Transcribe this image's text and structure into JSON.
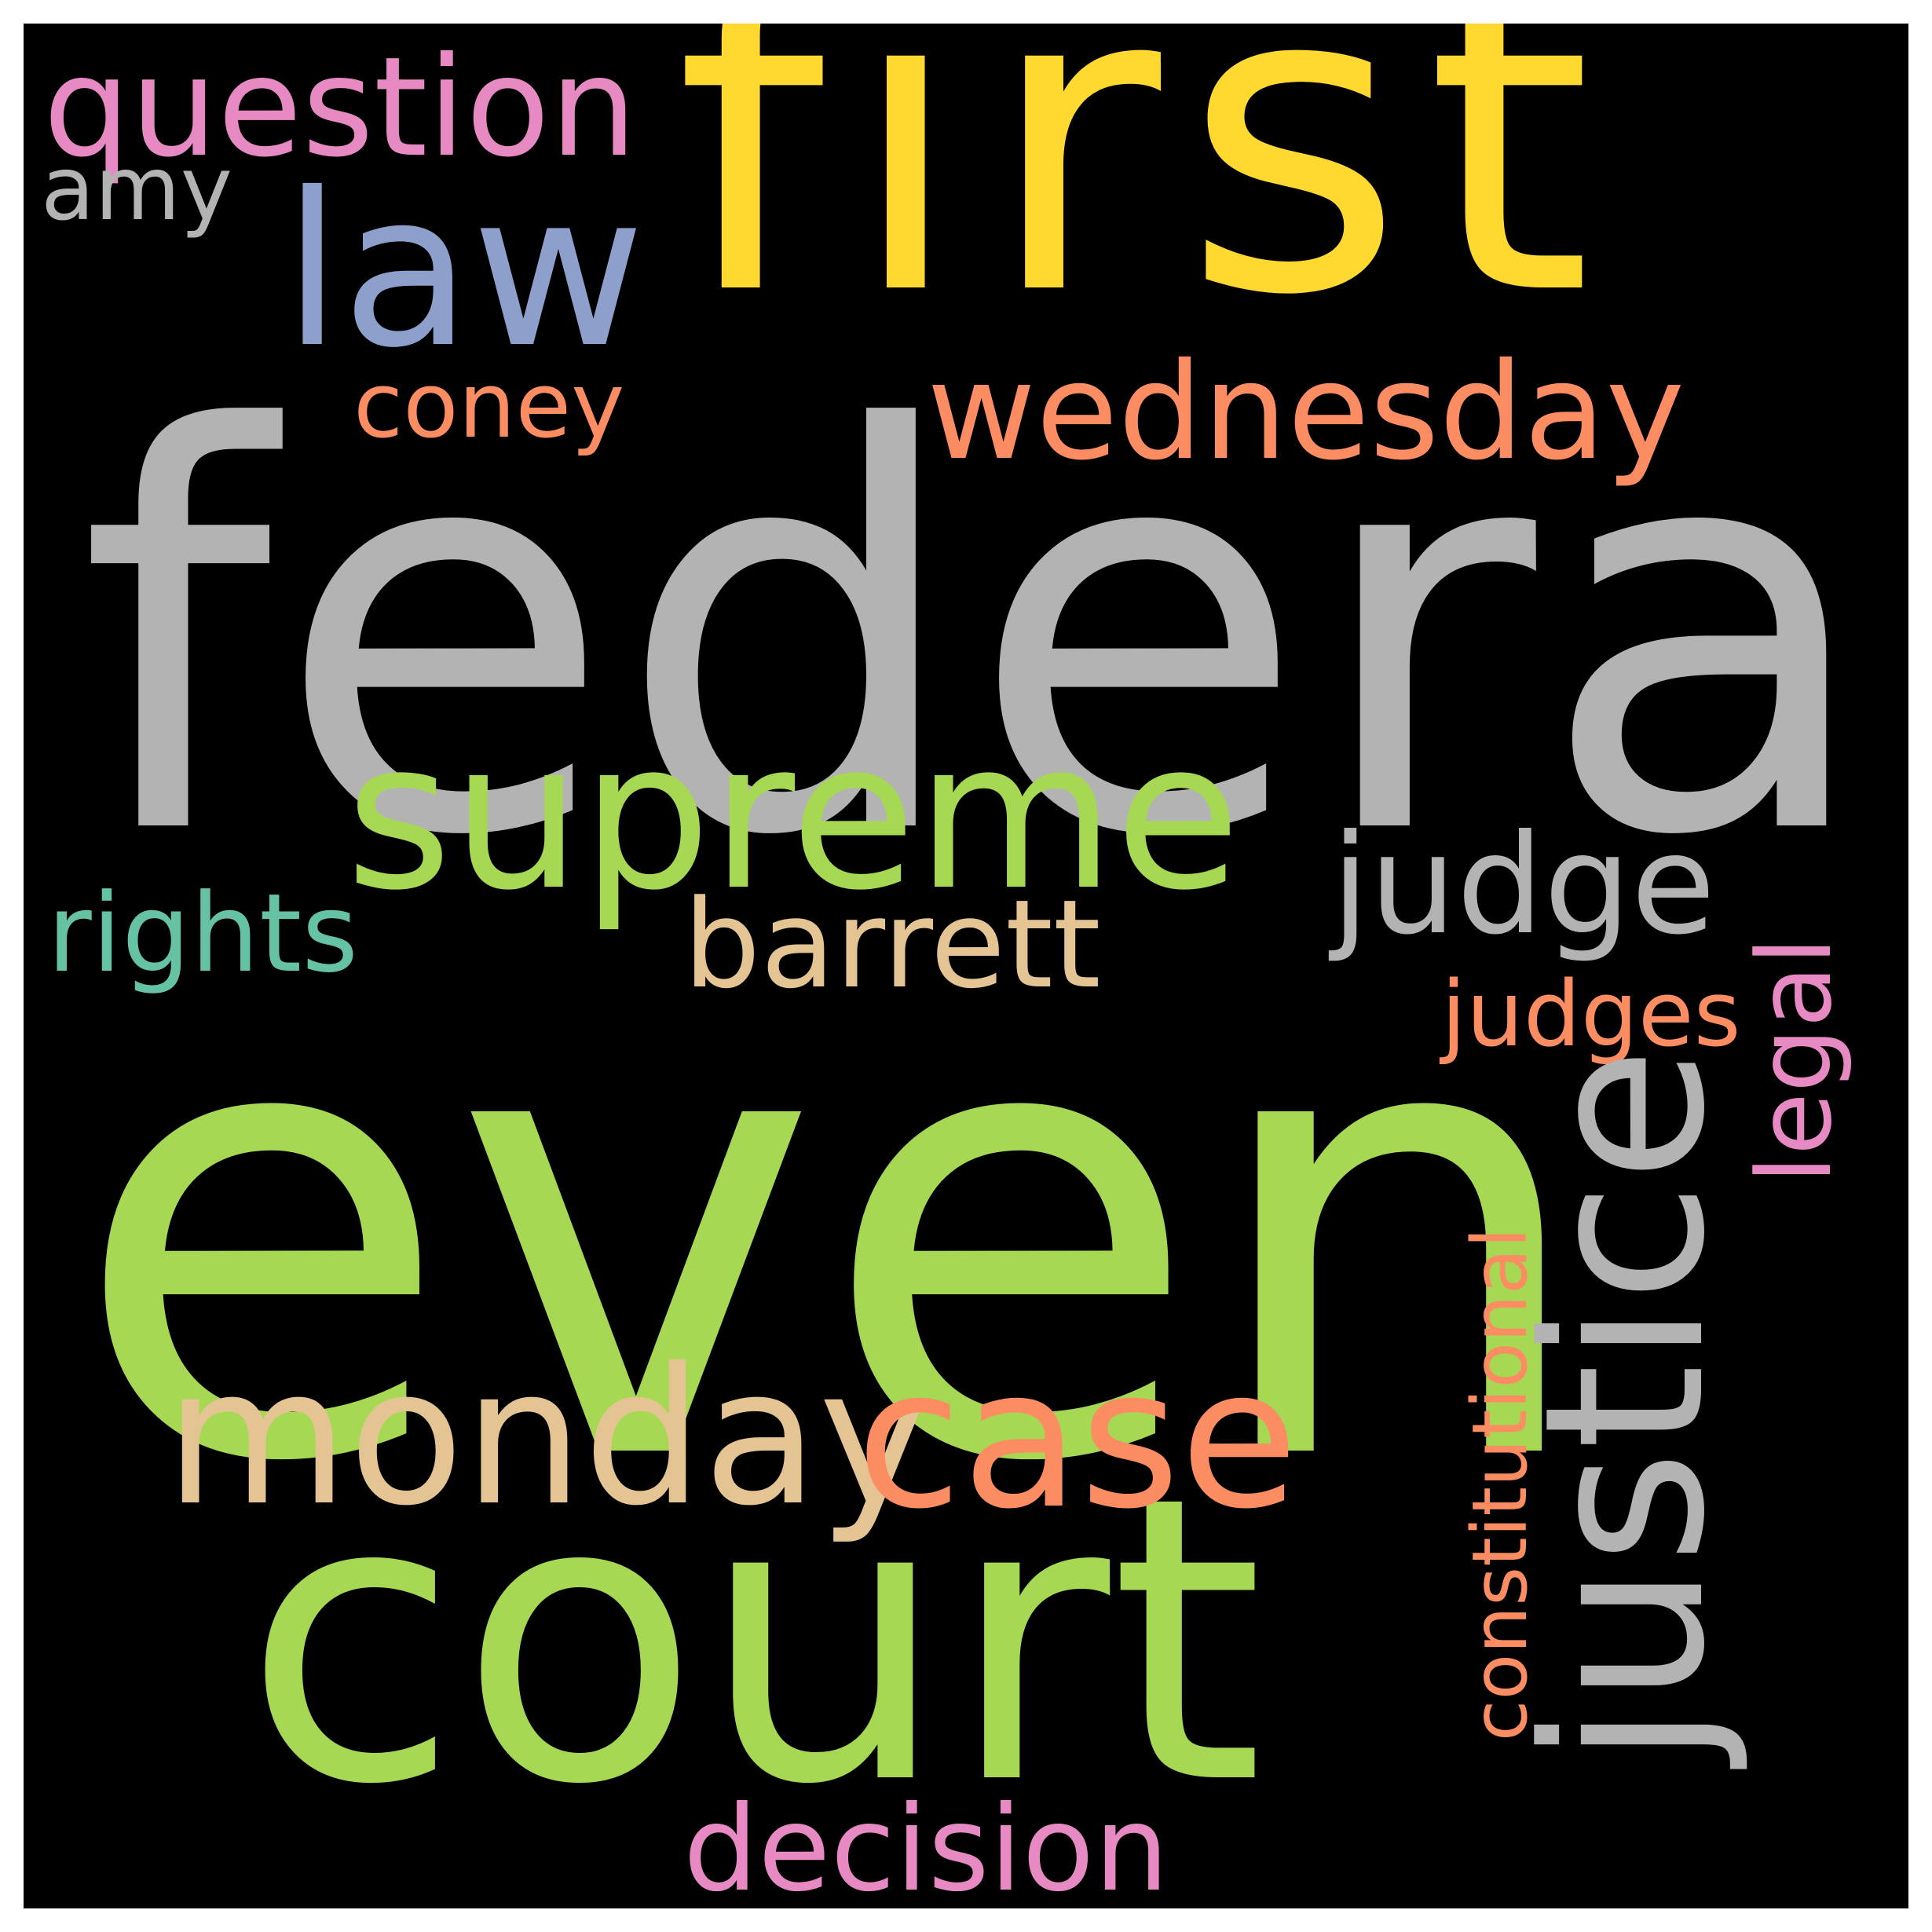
{
  "background_color": "#000000",
  "words": {
    "federal": {
      "text": "federal",
      "color": "#b3b3b3"
    },
    "even": {
      "text": "even",
      "color": "#a6d854"
    },
    "court": {
      "text": "court",
      "color": "#a6d854"
    },
    "first": {
      "text": "first",
      "color": "#ffd92f"
    },
    "law": {
      "text": "law",
      "color": "#8da0cb"
    },
    "question": {
      "text": "question",
      "color": "#e78ac3"
    },
    "amy": {
      "text": "amy",
      "color": "#b3b3b3"
    },
    "coney": {
      "text": "coney",
      "color": "#fc8d62"
    },
    "wednesday": {
      "text": "wednesday",
      "color": "#fc8d62"
    },
    "supreme": {
      "text": "supreme",
      "color": "#a6d854"
    },
    "judge": {
      "text": "judge",
      "color": "#b3b3b3"
    },
    "rights": {
      "text": "rights",
      "color": "#66c2a5"
    },
    "barrett": {
      "text": "barrett",
      "color": "#e5c494"
    },
    "judges": {
      "text": "judges",
      "color": "#fc8d62"
    },
    "legal": {
      "text": "legal",
      "color": "#e78ac3"
    },
    "justice": {
      "text": "justice",
      "color": "#b3b3b3"
    },
    "constitutional": {
      "text": "constitutional",
      "color": "#fc8d62"
    },
    "monday": {
      "text": "monday",
      "color": "#e5c494"
    },
    "case": {
      "text": "case",
      "color": "#fc8d62"
    },
    "decision": {
      "text": "decision",
      "color": "#e78ac3"
    }
  }
}
